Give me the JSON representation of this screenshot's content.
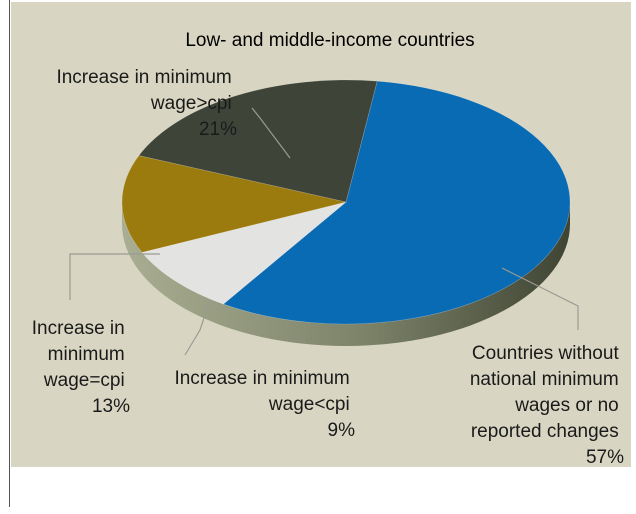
{
  "chart_data": {
    "type": "pie",
    "title": "Low- and middle-income countries",
    "slices": [
      {
        "label_lines": [
          "Countries without",
          "national minimum",
          "wages or no",
          "reported changes"
        ],
        "value": 57,
        "value_label": "57%",
        "color": "#0a6bb5",
        "side": "#0a4f86"
      },
      {
        "label_lines": [
          "Increase in minimum",
          "wage<cpi"
        ],
        "value": 9,
        "value_label": "9%",
        "color": "#e3e4e2",
        "side": "#b8b9b4"
      },
      {
        "label_lines": [
          "Increase in",
          "minimum",
          "wage=cpi"
        ],
        "value": 13,
        "value_label": "13%",
        "color": "#9c7b0e",
        "side": "#76600f"
      },
      {
        "label_lines": [
          "Increase in minimum",
          "wage>cpi"
        ],
        "value": 21,
        "value_label": "21%",
        "color": "#3e4538",
        "side": "#2c3128"
      }
    ]
  },
  "colors": {
    "panel_bg": "#d8d6c2",
    "rim": "#8a9076",
    "leader": "#9a9a92"
  }
}
